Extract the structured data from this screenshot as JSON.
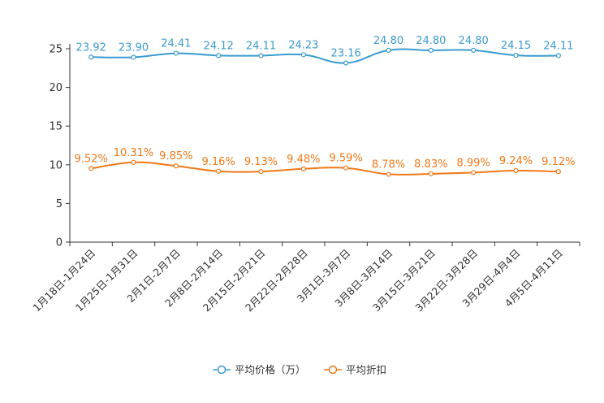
{
  "chart_data": {
    "type": "line",
    "title": "",
    "xlabel": "",
    "ylabel": "",
    "ylim": [
      0,
      25
    ],
    "yticks": [
      0,
      5,
      10,
      15,
      20,
      25
    ],
    "grid": false,
    "legend_position": "bottom-center",
    "categories": [
      "1月18日-1月24日",
      "1月25日-1月31日",
      "2月1日-2月7日",
      "2月8日-2月14日",
      "2月15日-2月21日",
      "2月22日-2月28日",
      "3月1日-3月7日",
      "3月8日-3月14日",
      "3月15日-3月21日",
      "3月22日-3月28日",
      "3月29日-4月4日",
      "4月5日-4月11日"
    ],
    "series": [
      {
        "name": "平均价格（万）",
        "color": "#3a9bd0",
        "values": [
          23.92,
          23.9,
          24.41,
          24.12,
          24.11,
          24.23,
          23.16,
          24.8,
          24.8,
          24.8,
          24.15,
          24.11
        ],
        "labels": [
          "23.92",
          "23.90",
          "24.41",
          "24.12",
          "24.11",
          "24.23",
          "23.16",
          "24.80",
          "24.80",
          "24.80",
          "24.15",
          "24.11"
        ]
      },
      {
        "name": "平均折扣",
        "color": "#f07818",
        "values": [
          9.52,
          10.31,
          9.85,
          9.16,
          9.13,
          9.48,
          9.59,
          8.78,
          8.83,
          8.99,
          9.24,
          9.12
        ],
        "labels": [
          "9.52%",
          "10.31%",
          "9.85%",
          "9.16%",
          "9.13%",
          "9.48%",
          "9.59%",
          "8.78%",
          "8.83%",
          "8.99%",
          "9.24%",
          "9.12%"
        ]
      }
    ]
  }
}
